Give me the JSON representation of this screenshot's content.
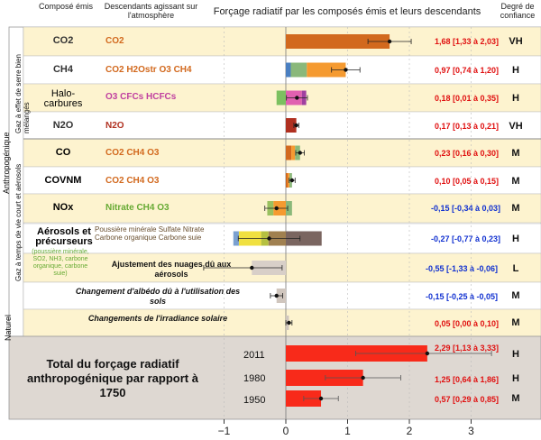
{
  "header": {
    "col_emitted": "Composé émis",
    "col_descendants": "Descendants agissant sur l'atmosphère",
    "title": "Forçage radiatif par les composés émis et leurs descendants",
    "col_confidence": "Degré de confiance"
  },
  "groups": {
    "anthropogenic": "Anthropogénique",
    "natural": "Naturel",
    "well_mixed": "Gaz à effet de serre bien mélangés",
    "short_lived": "Gaz à temps de vie court et aérosols"
  },
  "rows": [
    {
      "emitted": "CO2",
      "descendants": "CO2",
      "value_text": "1,68 [1,33 à 2,03]",
      "confidence": "VH"
    },
    {
      "emitted": "CH4",
      "descendants": "CO2  H2Ostr  O3  CH4",
      "value_text": "0,97 [0,74 à 1,20]",
      "confidence": "H"
    },
    {
      "emitted": "Halo-carbures",
      "descendants": "O3  CFCs  HCFCs",
      "value_text": "0,18 [0,01 à 0,35]",
      "confidence": "H"
    },
    {
      "emitted": "N2O",
      "descendants": "N2O",
      "value_text": "0,17 [0,13 à 0,21]",
      "confidence": "VH"
    },
    {
      "emitted": "CO",
      "descendants": "CO2  CH4  O3",
      "value_text": "0,23 [0,16 à 0,30]",
      "confidence": "M"
    },
    {
      "emitted": "COVNM",
      "descendants": "CO2  CH4  O3",
      "value_text": "0,10 [0,05 à 0,15]",
      "confidence": "M"
    },
    {
      "emitted": "NOx",
      "descendants": "Nitrate  CH4  O3",
      "value_text": "-0,15 [-0,34 à 0,03]",
      "confidence": "M"
    },
    {
      "emitted": "Aérosols et précurseurs",
      "descendants": "Poussière minérale  Sulfate  Nitrate  Carbone organique  Carbone suie",
      "value_text": "-0,27 [-0,77 à 0,23]",
      "confidence": "H"
    },
    {
      "emitted": "",
      "descendants": "Ajustement des nuages dû aux aérosols",
      "value_text": "-0,55 [-1,33 à -0,06]",
      "confidence": "L"
    },
    {
      "emitted": "",
      "descendants": "Changement d'albédo dû à l'utilisation des sols",
      "value_text": "-0,15 [-0,25 à -0,05]",
      "confidence": "M"
    },
    {
      "emitted": "",
      "descendants": "Changements de l'irradiance solaire",
      "value_text": "0,05 [0,00 à 0,10]",
      "confidence": "M"
    }
  ],
  "aerosol_precursors": "(poussière minérale, SO2, NH3, carbone organique, carbone suie)",
  "total": {
    "label": "Total du forçage radiatif anthropogénique par rapport à 1750",
    "years": [
      {
        "year": "2011",
        "value_text": "2,29 [1,13 à 3,33]",
        "confidence": "H"
      },
      {
        "year": "1980",
        "value_text": "1,25 [0,64 à 1,86]",
        "confidence": "H"
      },
      {
        "year": "1950",
        "value_text": "0,57 [0,29 à 0,85]",
        "confidence": "M"
      }
    ]
  },
  "chart_data": {
    "type": "bar",
    "xlim": [
      -1.5,
      3.5
    ],
    "ticks": [
      -1,
      0,
      1,
      2,
      3
    ],
    "tick_labels": [
      "−1",
      "0",
      "1",
      "2",
      "3"
    ],
    "rows": [
      {
        "best": 1.68,
        "low": 1.33,
        "high": 2.03,
        "segments": [
          {
            "color": "#d2691e",
            "from": 0,
            "to": 1.68
          }
        ]
      },
      {
        "best": 0.97,
        "low": 0.74,
        "high": 1.2,
        "segments": [
          {
            "color": "#4a7fc1",
            "from": 0,
            "to": 0.08
          },
          {
            "color": "#8ab87a",
            "from": 0.08,
            "to": 0.34
          },
          {
            "color": "#f59a30",
            "from": 0.34,
            "to": 0.97
          }
        ]
      },
      {
        "best": 0.18,
        "low": 0.01,
        "high": 0.35,
        "segments": [
          {
            "color": "#7cc060",
            "from": -0.15,
            "to": 0.0
          },
          {
            "color": "#e060b0",
            "from": 0.0,
            "to": 0.26
          },
          {
            "color": "#a040a0",
            "from": 0.26,
            "to": 0.33
          }
        ]
      },
      {
        "best": 0.17,
        "low": 0.13,
        "high": 0.21,
        "segments": [
          {
            "color": "#b03020",
            "from": 0,
            "to": 0.17
          }
        ]
      },
      {
        "best": 0.23,
        "low": 0.16,
        "high": 0.3,
        "segments": [
          {
            "color": "#d2691e",
            "from": 0,
            "to": 0.09
          },
          {
            "color": "#f59a30",
            "from": 0.09,
            "to": 0.15
          },
          {
            "color": "#8ab87a",
            "from": 0.15,
            "to": 0.23
          }
        ]
      },
      {
        "best": 0.1,
        "low": 0.05,
        "high": 0.15,
        "segments": [
          {
            "color": "#d2691e",
            "from": 0,
            "to": 0.03
          },
          {
            "color": "#f59a30",
            "from": 0.03,
            "to": 0.06
          },
          {
            "color": "#8ab87a",
            "from": 0.06,
            "to": 0.1
          }
        ]
      },
      {
        "best": -0.15,
        "low": -0.34,
        "high": 0.03,
        "segments": [
          {
            "color": "#9ac060",
            "from": -0.3,
            "to": -0.2
          },
          {
            "color": "#f59a30",
            "from": -0.2,
            "to": 0.0
          },
          {
            "color": "#8ab87a",
            "from": 0.0,
            "to": 0.1
          }
        ]
      },
      {
        "best": -0.27,
        "low": -0.77,
        "high": 0.23,
        "segments": [
          {
            "color": "#7aa0d0",
            "from": -0.85,
            "to": -0.76
          },
          {
            "color": "#f0e040",
            "from": -0.76,
            "to": -0.4
          },
          {
            "color": "#b5c040",
            "from": -0.4,
            "to": -0.28
          },
          {
            "color": "#a08050",
            "from": -0.28,
            "to": 0.0
          },
          {
            "color": "#7a6560",
            "from": 0.0,
            "to": 0.58
          }
        ]
      },
      {
        "best": -0.55,
        "low": -1.33,
        "high": -0.06,
        "segments": [
          {
            "color": "#d8cfc8",
            "from": -0.55,
            "to": 0.0
          }
        ]
      },
      {
        "best": -0.15,
        "low": -0.25,
        "high": -0.05,
        "segments": [
          {
            "color": "#d0c6be",
            "from": -0.15,
            "to": 0.0
          }
        ]
      },
      {
        "best": 0.05,
        "low": 0.0,
        "high": 0.1,
        "segments": [
          {
            "color": "#d0c6be",
            "from": 0,
            "to": 0.05
          }
        ]
      }
    ],
    "totals": [
      {
        "year": "2011",
        "best": 2.29,
        "low": 1.13,
        "high": 3.33
      },
      {
        "year": "1980",
        "best": 1.25,
        "low": 0.64,
        "high": 1.86
      },
      {
        "year": "1950",
        "best": 0.57,
        "low": 0.29,
        "high": 0.85
      }
    ],
    "colors": {
      "total_bar": "#f82a1a",
      "row_band": "#fdf3cf",
      "natural_band": "#fdf3cf",
      "total_band": "#ded8d2"
    }
  }
}
